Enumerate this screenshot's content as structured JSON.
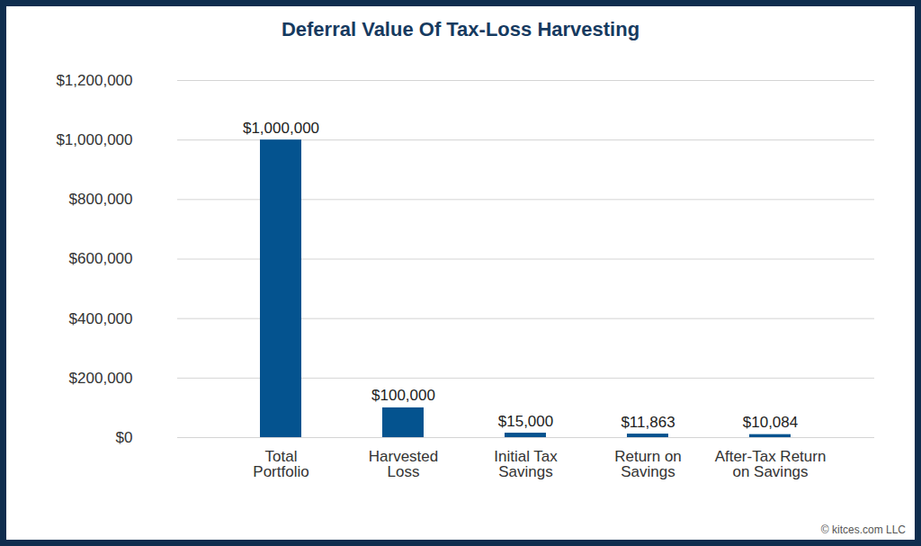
{
  "chart_data": {
    "type": "bar",
    "title": "Deferral Value Of Tax-Loss Harvesting",
    "categories": [
      "Total Portfolio",
      "Harvested Loss",
      "Initial Tax Savings",
      "Return on Savings",
      "After-Tax Return on Savings"
    ],
    "values": [
      1000000,
      100000,
      15000,
      11863,
      10084
    ],
    "value_labels": [
      "$1,000,000",
      "$100,000",
      "$15,000",
      "$11,863",
      "$10,084"
    ],
    "data_labels": true,
    "color": "#04538f",
    "ylim": [
      0,
      1200000
    ],
    "yticks": [
      {
        "value": 0,
        "label": "$0"
      },
      {
        "value": 200000,
        "label": "$200,000"
      },
      {
        "value": 400000,
        "label": "$400,000"
      },
      {
        "value": 600000,
        "label": "$600,000"
      },
      {
        "value": 800000,
        "label": "$800,000"
      },
      {
        "value": 1000000,
        "label": "$1,000,000"
      },
      {
        "value": 1200000,
        "label": "$1,200,000"
      }
    ],
    "grid": true,
    "annotations": [
      "© kitces.com LLC"
    ]
  }
}
